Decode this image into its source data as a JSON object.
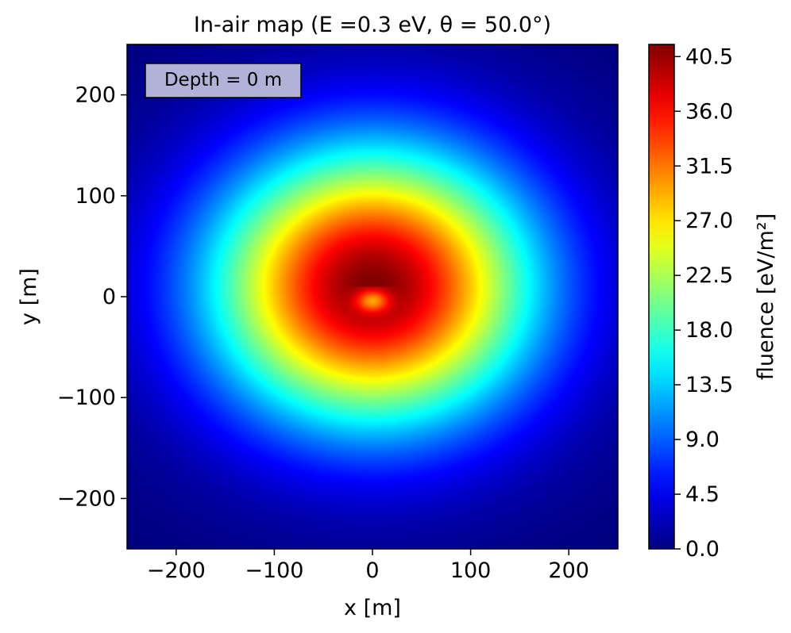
{
  "chart_data": {
    "type": "heatmap",
    "title": "In-air map (E =0.3 eV, θ = 50.0°)",
    "xlabel": "x [m]",
    "ylabel": "y [m]",
    "xlim": [
      -250,
      250
    ],
    "ylim": [
      -250,
      250
    ],
    "x_ticks": [
      -200,
      -100,
      0,
      100,
      200
    ],
    "x_tick_labels": [
      "−200",
      "−100",
      "0",
      "100",
      "200"
    ],
    "y_ticks": [
      -200,
      -100,
      0,
      100,
      200
    ],
    "y_tick_labels": [
      "−200",
      "−100",
      "0",
      "100",
      "200"
    ],
    "annotation": "Depth = 0 m",
    "colorbar": {
      "label": "fluence [eV/m²]",
      "colormap": "jet",
      "range": [
        0,
        41.5
      ],
      "ticks": [
        0.0,
        4.5,
        9.0,
        13.5,
        18.0,
        22.5,
        27.0,
        31.5,
        36.0,
        40.5
      ],
      "tick_labels": [
        "0.0",
        "4.5",
        "9.0",
        "13.5",
        "18.0",
        "22.5",
        "27.0",
        "31.5",
        "36.0",
        "40.5"
      ]
    },
    "field": {
      "peak_fluence": 41.5,
      "peak_x": 0,
      "peak_y": 10,
      "approx_level_extents": [
        {
          "fluence": 36.0,
          "x_half_width": 50,
          "y_half_height": 25
        },
        {
          "fluence": 13.5,
          "x_half_width": 125,
          "y_half_height": 85
        },
        {
          "fluence": 4.5,
          "x_half_width": 240,
          "y_half_height": 200
        }
      ]
    },
    "grid": false,
    "legend": "none"
  }
}
